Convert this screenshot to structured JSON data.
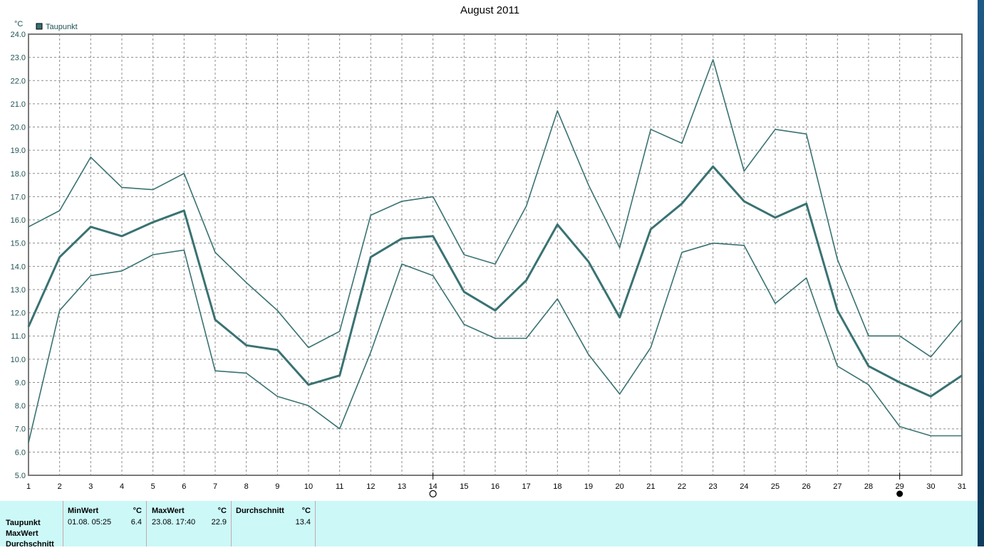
{
  "chart_data": {
    "type": "line",
    "title": "August 2011",
    "unit": "°C",
    "legend": {
      "label": "Taupunkt",
      "color": "#3a7272",
      "placement": "top-left"
    },
    "x": [
      1,
      2,
      3,
      4,
      5,
      6,
      7,
      8,
      9,
      10,
      11,
      12,
      13,
      14,
      15,
      16,
      17,
      18,
      19,
      20,
      21,
      22,
      23,
      24,
      25,
      26,
      27,
      28,
      29,
      30,
      31
    ],
    "ylim": [
      5.0,
      24.0
    ],
    "yticks": [
      "5.0",
      "6.0",
      "7.0",
      "8.0",
      "9.0",
      "10.0",
      "11.0",
      "12.0",
      "13.0",
      "14.0",
      "15.0",
      "16.0",
      "17.0",
      "18.0",
      "19.0",
      "20.0",
      "21.0",
      "22.0",
      "23.0",
      "24.0"
    ],
    "grid": true,
    "line_color": "#3a7272",
    "series": [
      {
        "values": [
          15.7,
          16.4,
          18.7,
          17.4,
          17.3,
          18.0,
          14.6,
          13.3,
          12.1,
          10.5,
          11.2,
          16.2,
          16.8,
          17.0,
          14.5,
          14.1,
          16.6,
          20.7,
          17.5,
          14.8,
          19.9,
          19.3,
          22.9,
          18.1,
          19.9,
          19.7,
          14.3,
          11.0,
          11.0,
          10.1,
          11.7
        ]
      },
      {
        "values": [
          11.4,
          14.4,
          15.7,
          15.3,
          15.9,
          16.4,
          11.7,
          10.6,
          10.4,
          8.9,
          9.3,
          14.4,
          15.2,
          15.3,
          12.9,
          12.1,
          13.4,
          15.8,
          14.2,
          11.8,
          15.6,
          16.7,
          18.3,
          16.8,
          16.1,
          16.7,
          12.1,
          9.7,
          9.0,
          8.4,
          9.3
        ],
        "bold": true
      },
      {
        "values": [
          6.4,
          12.1,
          13.6,
          13.8,
          14.5,
          14.7,
          9.5,
          9.4,
          8.4,
          8.0,
          7.0,
          10.3,
          14.1,
          13.6,
          11.5,
          10.9,
          10.9,
          12.6,
          10.2,
          8.5,
          10.5,
          14.6,
          15.0,
          14.9,
          12.4,
          13.5,
          9.7,
          8.9,
          7.1,
          6.7,
          6.7
        ]
      }
    ],
    "markers": [
      {
        "x": 14,
        "type": "hollow-circle"
      },
      {
        "x": 29,
        "type": "filled-circle"
      }
    ]
  },
  "stats": {
    "rows": [
      "Taupunkt",
      "MaxWert",
      "Durchschnitt"
    ],
    "columns": [
      {
        "header": "MinWert",
        "unit": "°C",
        "date": "01.08.  05:25",
        "value": "6.4"
      },
      {
        "header": "MaxWert",
        "unit": "°C",
        "date": "23.08.  17:40",
        "value": "22.9"
      },
      {
        "header": "Durchschnitt",
        "unit": "°C",
        "date": "",
        "value": "13.4"
      }
    ]
  }
}
